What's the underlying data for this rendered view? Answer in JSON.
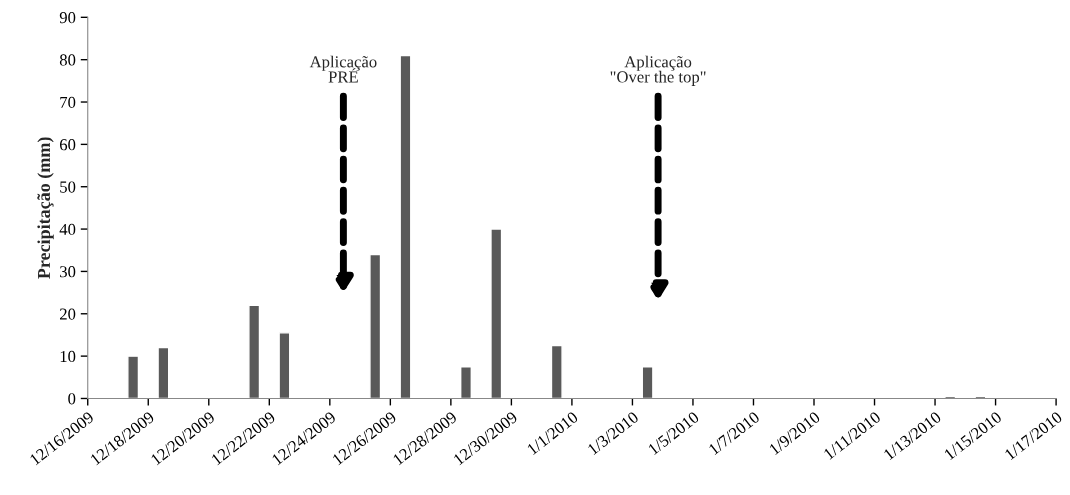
{
  "chart_data": {
    "type": "bar",
    "ylabel": "Precipitação (mm)",
    "x": [
      "2009-12-17T12:00",
      "2009-12-18T12:00",
      "2009-12-21T12:00",
      "2009-12-22T12:00",
      "2009-12-25T12:00",
      "2009-12-26T12:00",
      "2009-12-28T12:00",
      "2009-12-29T12:00",
      "2009-12-31T12:00",
      "2010-01-03T12:00",
      "2010-01-13T12:00",
      "2010-01-14T12:00"
    ],
    "values": [
      10,
      12,
      22,
      15.5,
      34,
      81,
      7.5,
      40,
      12.5,
      7.5,
      0.5,
      0.5
    ],
    "color": "#595959",
    "xlim": [
      "2009-12-16",
      "2010-01-17"
    ],
    "xticks": [
      {
        "value": "2009-12-16",
        "label": "12/16/2009"
      },
      {
        "value": "2009-12-18",
        "label": "12/18/2009"
      },
      {
        "value": "2009-12-20",
        "label": "12/20/2009"
      },
      {
        "value": "2009-12-22",
        "label": "12/22/2009"
      },
      {
        "value": "2009-12-24",
        "label": "12/24/2009"
      },
      {
        "value": "2009-12-26",
        "label": "12/26/2009"
      },
      {
        "value": "2009-12-28",
        "label": "12/28/2009"
      },
      {
        "value": "2009-12-30",
        "label": "12/30/2009"
      },
      {
        "value": "2010-01-01",
        "label": "1/1/2010"
      },
      {
        "value": "2010-01-03",
        "label": "1/3/2010"
      },
      {
        "value": "2010-01-05",
        "label": "1/5/2010"
      },
      {
        "value": "2010-01-07",
        "label": "1/7/2010"
      },
      {
        "value": "2010-01-09",
        "label": "1/9/2010"
      },
      {
        "value": "2010-01-11",
        "label": "1/11/2010"
      },
      {
        "value": "2010-01-13",
        "label": "1/13/2010"
      },
      {
        "value": "2010-01-15",
        "label": "1/15/2010"
      },
      {
        "value": "2010-01-17",
        "label": "1/17/2010"
      }
    ],
    "ylim": [
      0,
      90
    ],
    "yticks": [
      0,
      10,
      20,
      30,
      40,
      50,
      60,
      70,
      80,
      90
    ],
    "grid": false,
    "legend": false,
    "annotations": [
      "Aplicação\nPRÉ",
      "Aplicação\n\"Over the top\""
    ]
  }
}
